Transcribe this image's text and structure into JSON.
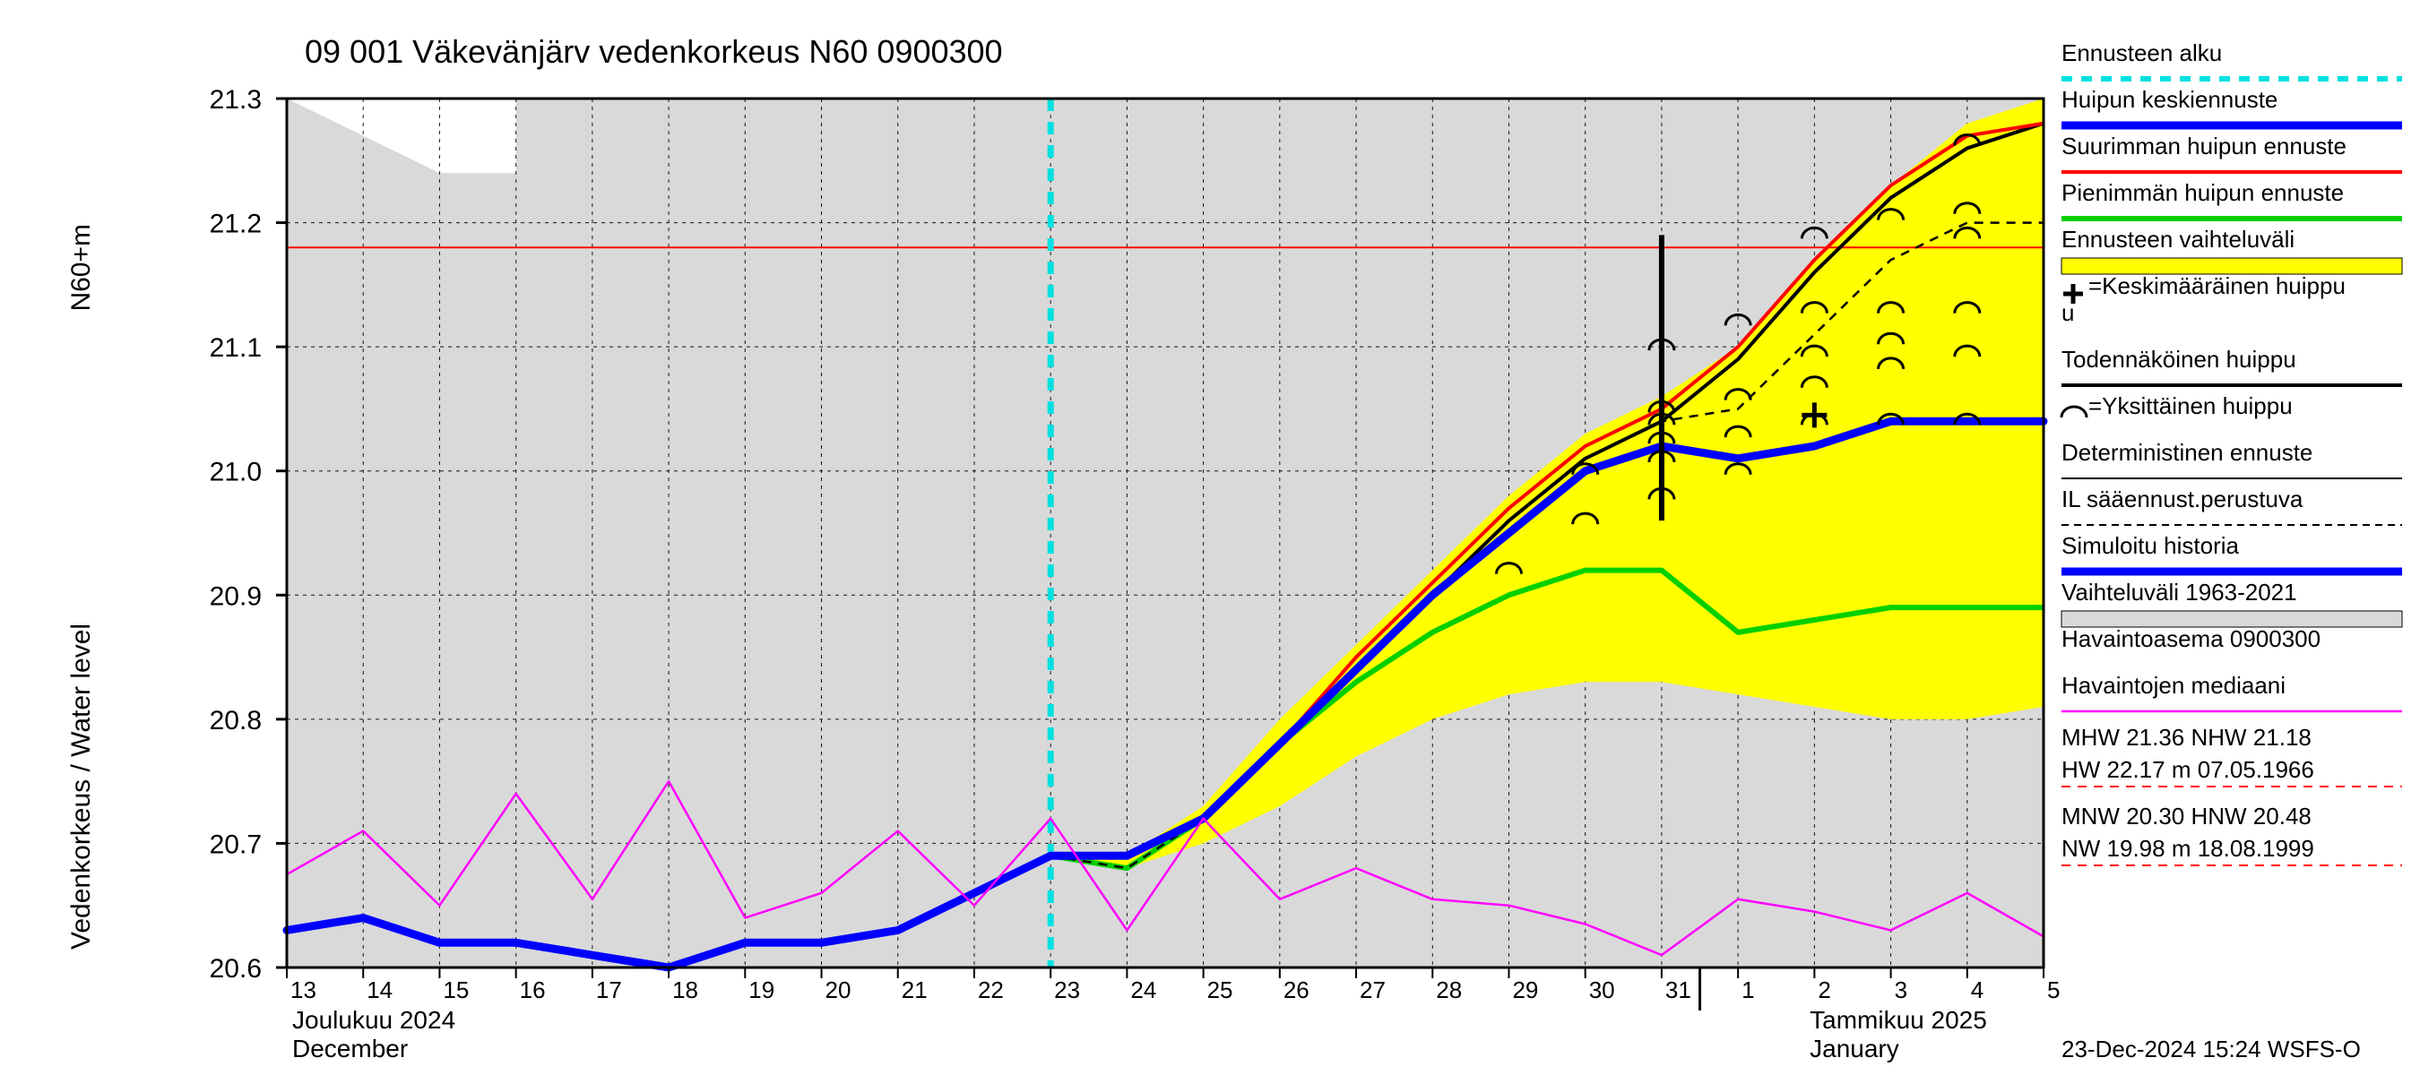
{
  "chart": {
    "type": "line",
    "title": "09 001 Väkevänjärv vedenkorkeus N60 0900300",
    "title_fontsize": 36,
    "ylabel_top": "N60+m",
    "ylabel_bottom": "Vedenkorkeus / Water level",
    "ylabel_fontsize": 30,
    "x_days": [
      13,
      14,
      15,
      16,
      17,
      18,
      19,
      20,
      21,
      22,
      23,
      24,
      25,
      26,
      27,
      28,
      29,
      30,
      31,
      1,
      2,
      3,
      4,
      5
    ],
    "month_labels": {
      "left_fi": "Joulukuu  2024",
      "left_en": "December",
      "right_fi": "Tammikuu  2025",
      "right_en": "January"
    },
    "ylim": [
      20.6,
      21.3
    ],
    "yticks": [
      20.6,
      20.7,
      20.8,
      20.9,
      21.0,
      21.1,
      21.2,
      21.3
    ],
    "forecast_start_day_index": 10,
    "historical_white_poly": [
      [
        0,
        21.3
      ],
      [
        2,
        21.24
      ],
      [
        3,
        21.24
      ],
      [
        3,
        21.3
      ]
    ],
    "hist_range_color": "#d9d9d9",
    "upper_band": [
      [
        10,
        20.69
      ],
      [
        11,
        20.69
      ],
      [
        12,
        20.73
      ],
      [
        13,
        20.8
      ],
      [
        14,
        20.86
      ],
      [
        15,
        20.92
      ],
      [
        16,
        20.98
      ],
      [
        17,
        21.03
      ],
      [
        18,
        21.06
      ],
      [
        19,
        21.1
      ],
      [
        20,
        21.17
      ],
      [
        21,
        21.23
      ],
      [
        22,
        21.28
      ],
      [
        23,
        21.3
      ]
    ],
    "lower_band": [
      [
        10,
        20.69
      ],
      [
        11,
        20.68
      ],
      [
        12,
        20.7
      ],
      [
        13,
        20.73
      ],
      [
        14,
        20.77
      ],
      [
        15,
        20.8
      ],
      [
        16,
        20.82
      ],
      [
        17,
        20.83
      ],
      [
        18,
        20.83
      ],
      [
        19,
        20.82
      ],
      [
        20,
        20.81
      ],
      [
        21,
        20.8
      ],
      [
        22,
        20.8
      ],
      [
        23,
        20.81
      ]
    ],
    "band_color": "#ffff00",
    "sim_history": [
      [
        0,
        20.63
      ],
      [
        1,
        20.64
      ],
      [
        2,
        20.62
      ],
      [
        3,
        20.62
      ],
      [
        4,
        20.61
      ],
      [
        5,
        20.6
      ],
      [
        6,
        20.62
      ],
      [
        7,
        20.62
      ],
      [
        8,
        20.63
      ],
      [
        9,
        20.66
      ],
      [
        10,
        20.69
      ],
      [
        11,
        20.69
      ],
      [
        12,
        20.72
      ],
      [
        13,
        20.78
      ],
      [
        14,
        20.84
      ],
      [
        15,
        20.9
      ],
      [
        16,
        20.95
      ],
      [
        17,
        21.0
      ],
      [
        18,
        21.02
      ],
      [
        19,
        21.01
      ],
      [
        20,
        21.02
      ],
      [
        21,
        21.04
      ],
      [
        22,
        21.04
      ],
      [
        23,
        21.04
      ]
    ],
    "green_line": [
      [
        10,
        20.69
      ],
      [
        11,
        20.68
      ],
      [
        12,
        20.72
      ],
      [
        13,
        20.78
      ],
      [
        14,
        20.83
      ],
      [
        15,
        20.87
      ],
      [
        16,
        20.9
      ],
      [
        17,
        20.92
      ],
      [
        18,
        20.92
      ],
      [
        19,
        20.87
      ],
      [
        20,
        20.88
      ],
      [
        21,
        20.89
      ],
      [
        22,
        20.89
      ],
      [
        23,
        20.89
      ]
    ],
    "red_line": [
      [
        10,
        20.69
      ],
      [
        11,
        20.69
      ],
      [
        12,
        20.72
      ],
      [
        13,
        20.78
      ],
      [
        14,
        20.85
      ],
      [
        15,
        20.91
      ],
      [
        16,
        20.97
      ],
      [
        17,
        21.02
      ],
      [
        18,
        21.05
      ],
      [
        19,
        21.1
      ],
      [
        20,
        21.17
      ],
      [
        21,
        21.23
      ],
      [
        22,
        21.27
      ],
      [
        23,
        21.28
      ]
    ],
    "black_line": [
      [
        10,
        20.69
      ],
      [
        11,
        20.68
      ],
      [
        12,
        20.72
      ],
      [
        13,
        20.78
      ],
      [
        14,
        20.84
      ],
      [
        15,
        20.9
      ],
      [
        16,
        20.96
      ],
      [
        17,
        21.01
      ],
      [
        18,
        21.04
      ],
      [
        19,
        21.09
      ],
      [
        20,
        21.16
      ],
      [
        21,
        21.22
      ],
      [
        22,
        21.26
      ],
      [
        23,
        21.28
      ]
    ],
    "dash_il": [
      [
        10,
        20.69
      ],
      [
        11,
        20.68
      ],
      [
        12,
        20.72
      ],
      [
        13,
        20.78
      ],
      [
        14,
        20.84
      ],
      [
        15,
        20.9
      ],
      [
        16,
        20.96
      ],
      [
        17,
        21.01
      ],
      [
        18,
        21.04
      ],
      [
        19,
        21.05
      ],
      [
        20,
        21.11
      ],
      [
        21,
        21.17
      ],
      [
        22,
        21.2
      ],
      [
        23,
        21.2
      ]
    ],
    "median_pink": [
      [
        0,
        20.675
      ],
      [
        1,
        20.71
      ],
      [
        2,
        20.65
      ],
      [
        3,
        20.74
      ],
      [
        4,
        20.655
      ],
      [
        5,
        20.75
      ],
      [
        6,
        20.64
      ],
      [
        7,
        20.66
      ],
      [
        8,
        20.71
      ],
      [
        9,
        20.65
      ],
      [
        10,
        20.72
      ],
      [
        11,
        20.63
      ],
      [
        12,
        20.72
      ],
      [
        13,
        20.655
      ],
      [
        14,
        20.68
      ],
      [
        15,
        20.655
      ],
      [
        16,
        20.65
      ],
      [
        17,
        20.635
      ],
      [
        18,
        20.61
      ],
      [
        19,
        20.655
      ],
      [
        20,
        20.645
      ],
      [
        21,
        20.63
      ],
      [
        22,
        20.66
      ],
      [
        23,
        20.625
      ]
    ],
    "nhw_line_y": 21.18,
    "nhw_line_color": "#ff0000",
    "peak_marker": {
      "x_index": 18,
      "y_low": 20.96,
      "y_high": 21.19
    },
    "plus_marker": {
      "x_index": 20,
      "y": 21.045
    },
    "arc_markers": [
      {
        "x": 16,
        "y": 20.92
      },
      {
        "x": 17,
        "y": 20.96
      },
      {
        "x": 17,
        "y": 21.0
      },
      {
        "x": 18,
        "y": 20.98
      },
      {
        "x": 18,
        "y": 21.01
      },
      {
        "x": 18,
        "y": 21.025
      },
      {
        "x": 18,
        "y": 21.04
      },
      {
        "x": 18,
        "y": 21.05
      },
      {
        "x": 18,
        "y": 21.1
      },
      {
        "x": 19,
        "y": 21.0
      },
      {
        "x": 19,
        "y": 21.03
      },
      {
        "x": 19,
        "y": 21.06
      },
      {
        "x": 19,
        "y": 21.12
      },
      {
        "x": 20,
        "y": 21.04
      },
      {
        "x": 20,
        "y": 21.07
      },
      {
        "x": 20,
        "y": 21.095
      },
      {
        "x": 20,
        "y": 21.13
      },
      {
        "x": 20,
        "y": 21.19
      },
      {
        "x": 21,
        "y": 21.04
      },
      {
        "x": 21,
        "y": 21.085
      },
      {
        "x": 21,
        "y": 21.105
      },
      {
        "x": 21,
        "y": 21.13
      },
      {
        "x": 21,
        "y": 21.205
      },
      {
        "x": 22,
        "y": 21.04
      },
      {
        "x": 22,
        "y": 21.095
      },
      {
        "x": 22,
        "y": 21.13
      },
      {
        "x": 22,
        "y": 21.19
      },
      {
        "x": 22,
        "y": 21.21
      },
      {
        "x": 22,
        "y": 21.265
      }
    ],
    "colors": {
      "blue": "#0000ff",
      "green": "#00d000",
      "red": "#ff0000",
      "black": "#000000",
      "magenta": "#ff00ff",
      "cyan": "#00e0e0"
    },
    "line_widths": {
      "blue": 9,
      "green": 6,
      "red": 4,
      "black": 4,
      "pink": 2.5
    },
    "grid_color": "#000000",
    "axis_fontsize": 30
  },
  "legend": {
    "fontsize": 26,
    "items": [
      {
        "label": "Ennusteen alku",
        "type": "dash",
        "color": "#00e0e0",
        "w": 6,
        "dash": "12,10"
      },
      {
        "label": "Huipun keskiennuste",
        "type": "line",
        "color": "#0000ff",
        "w": 9
      },
      {
        "label": "Suurimman huipun ennuste",
        "type": "line",
        "color": "#ff0000",
        "w": 4
      },
      {
        "label": "Pienimmän huipun ennuste",
        "type": "line",
        "color": "#00d000",
        "w": 6
      },
      {
        "label": "Ennusteen vaihteluväli",
        "type": "box",
        "color": "#ffff00"
      },
      {
        "label": "=Keskimääräinen huippu",
        "type": "plus"
      },
      {
        "label": "Todennäköinen huippu",
        "type": "line",
        "color": "#000000",
        "w": 4
      },
      {
        "label": "=Yksittäinen huippu",
        "type": "arc"
      },
      {
        "label": "Deterministinen ennuste",
        "type": "line",
        "color": "#000000",
        "w": 2
      },
      {
        "label": "IL sääennust.perustuva",
        "type": "dash",
        "color": "#000000",
        "w": 2,
        "dash": "8,6"
      },
      {
        "label": "Simuloitu historia",
        "type": "line",
        "color": "#0000ff",
        "w": 9
      },
      {
        "label": "Vaihteluväli 1963-2021",
        "type": "box",
        "color": "#d9d9d9"
      },
      {
        "label": " Havaintoasema 0900300",
        "type": "none"
      },
      {
        "label": "Havaintojen mediaani",
        "type": "line",
        "color": "#ff00ff",
        "w": 2.5
      }
    ],
    "stats": [
      "MHW  21.36 NHW  21.18",
      "HW  22.17 m 07.05.1966",
      "MNW  20.30 HNW  20.48",
      "NW  19.98 m 18.08.1999"
    ],
    "stats_dash_color": "#ff0000"
  },
  "footer": "23-Dec-2024 15:24 WSFS-O"
}
